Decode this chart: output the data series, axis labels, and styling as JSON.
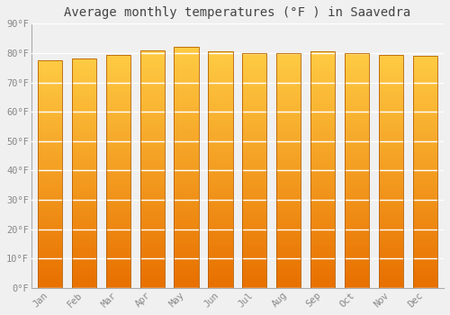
{
  "title": "Average monthly temperatures (°F ) in Saavedra",
  "months": [
    "Jan",
    "Feb",
    "Mar",
    "Apr",
    "May",
    "Jun",
    "Jul",
    "Aug",
    "Sep",
    "Oct",
    "Nov",
    "Dec"
  ],
  "values": [
    77.5,
    78.0,
    79.5,
    81.0,
    82.0,
    80.5,
    80.0,
    80.0,
    80.5,
    80.0,
    79.5,
    79.0
  ],
  "ylim": [
    0,
    90
  ],
  "yticks": [
    0,
    10,
    20,
    30,
    40,
    50,
    60,
    70,
    80,
    90
  ],
  "ytick_labels": [
    "0°F",
    "10°F",
    "20°F",
    "30°F",
    "40°F",
    "50°F",
    "60°F",
    "70°F",
    "80°F",
    "90°F"
  ],
  "bar_color_bottom": "#E87000",
  "bar_color_top": "#FFCC44",
  "bar_edge_color": "#B86000",
  "background_color": "#f0f0f0",
  "grid_color": "#ffffff",
  "title_fontsize": 10,
  "tick_fontsize": 7.5,
  "font_family": "monospace",
  "bar_width": 0.72
}
